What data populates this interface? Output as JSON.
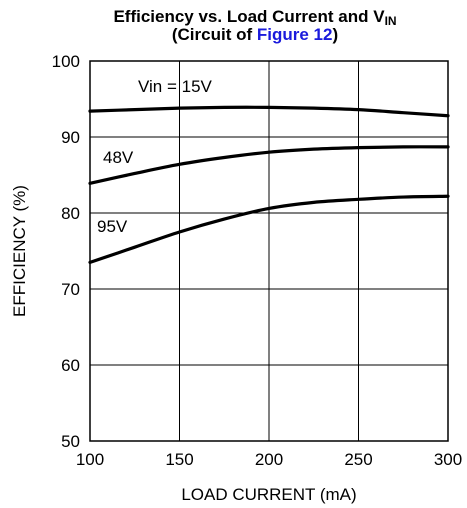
{
  "chart_data": {
    "type": "line",
    "title_main": "Efficiency vs. Load Current and V",
    "title_sub": "IN",
    "subtitle_prefix": "(Circuit of ",
    "subtitle_link": "Figure 12",
    "subtitle_suffix": ")",
    "xlabel": "LOAD CURRENT (mA)",
    "ylabel": "EFFICIENCY (%)",
    "xlim": [
      100,
      300
    ],
    "ylim": [
      50,
      100
    ],
    "xticks": [
      "100",
      "150",
      "200",
      "250",
      "300"
    ],
    "yticks": [
      "50",
      "60",
      "70",
      "80",
      "90",
      "100"
    ],
    "grid": true,
    "colors": {
      "series": "#000000",
      "grid": "#000000",
      "link": "#1a1adc"
    },
    "series": [
      {
        "name": "Vin = 15V",
        "x": [
          100,
          125,
          150,
          175,
          200,
          225,
          250,
          275,
          300
        ],
        "y": [
          93.4,
          93.6,
          93.8,
          93.9,
          93.9,
          93.8,
          93.6,
          93.2,
          92.8
        ]
      },
      {
        "name": "48V",
        "x": [
          100,
          125,
          150,
          175,
          200,
          225,
          250,
          275,
          300
        ],
        "y": [
          83.9,
          85.2,
          86.4,
          87.3,
          88.0,
          88.4,
          88.6,
          88.7,
          88.7
        ]
      },
      {
        "name": "95V",
        "x": [
          100,
          125,
          150,
          175,
          200,
          225,
          250,
          275,
          300
        ],
        "y": [
          73.5,
          75.5,
          77.5,
          79.2,
          80.6,
          81.4,
          81.8,
          82.1,
          82.2
        ]
      }
    ]
  }
}
